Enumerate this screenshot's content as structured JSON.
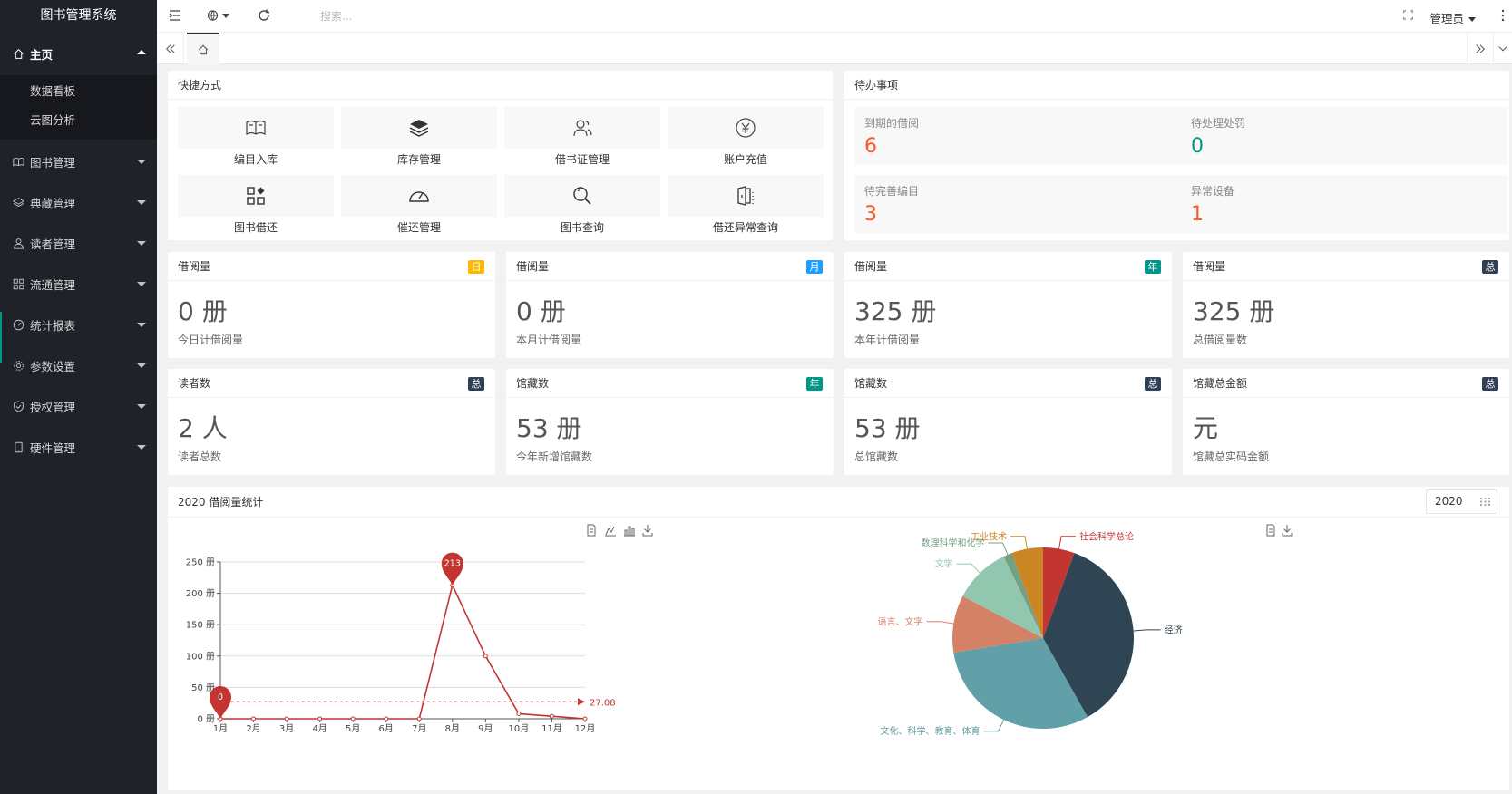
{
  "app": {
    "title": "图书管理系统"
  },
  "sidebar": {
    "items": [
      {
        "label": "主页",
        "icon": "home-icon",
        "open": true,
        "children": [
          "数据看板",
          "云图分析"
        ]
      },
      {
        "label": "图书管理",
        "icon": "book-icon"
      },
      {
        "label": "典藏管理",
        "icon": "layers-icon"
      },
      {
        "label": "读者管理",
        "icon": "user-icon"
      },
      {
        "label": "流通管理",
        "icon": "apps-icon"
      },
      {
        "label": "统计报表",
        "icon": "gauge-icon"
      },
      {
        "label": "参数设置",
        "icon": "gear-icon"
      },
      {
        "label": "授权管理",
        "icon": "shield-icon"
      },
      {
        "label": "硬件管理",
        "icon": "device-icon"
      }
    ]
  },
  "header": {
    "search_placeholder": "搜索...",
    "user": "管理员"
  },
  "shortcuts": {
    "title": "快捷方式",
    "items": [
      {
        "label": "编目入库",
        "icon": "open-book-icon"
      },
      {
        "label": "库存管理",
        "icon": "stack-icon"
      },
      {
        "label": "借书证管理",
        "icon": "users-icon"
      },
      {
        "label": "账户充值",
        "icon": "yen-icon"
      },
      {
        "label": "图书借还",
        "icon": "widgets-icon"
      },
      {
        "label": "催还管理",
        "icon": "speedometer-icon"
      },
      {
        "label": "图书查询",
        "icon": "magnifier-icon"
      },
      {
        "label": "借还异常查询",
        "icon": "book-alert-icon"
      }
    ]
  },
  "todos": {
    "title": "待办事项",
    "items": [
      {
        "label": "到期的借阅",
        "value": "6",
        "color": "#ff5722"
      },
      {
        "label": "待处理处罚",
        "value": "0",
        "color": "#009688"
      },
      {
        "label": "待完善编目",
        "value": "3",
        "color": "#ff5722"
      },
      {
        "label": "异常设备",
        "value": "1",
        "color": "#ff5722"
      }
    ]
  },
  "stats": [
    {
      "title": "借阅量",
      "badge": "日",
      "badge_color": "#ffb800",
      "value": "0 册",
      "sub": "今日计借阅量"
    },
    {
      "title": "借阅量",
      "badge": "月",
      "badge_color": "#1e9fff",
      "value": "0 册",
      "sub": "本月计借阅量"
    },
    {
      "title": "借阅量",
      "badge": "年",
      "badge_color": "#009688",
      "value": "325 册",
      "sub": "本年计借阅量"
    },
    {
      "title": "借阅量",
      "badge": "总",
      "badge_color": "#2f4056",
      "value": "325 册",
      "sub": "总借阅量数"
    },
    {
      "title": "读者数",
      "badge": "总",
      "badge_color": "#2f4056",
      "value": "2 人",
      "sub": "读者总数"
    },
    {
      "title": "馆藏数",
      "badge": "年",
      "badge_color": "#009688",
      "value": "53 册",
      "sub": "今年新增馆藏数"
    },
    {
      "title": "馆藏数",
      "badge": "总",
      "badge_color": "#2f4056",
      "value": "53 册",
      "sub": "总馆藏数"
    },
    {
      "title": "馆藏总金额",
      "badge": "总",
      "badge_color": "#2f4056",
      "value": "元",
      "sub": "馆藏总实码金额"
    }
  ],
  "chart_panel": {
    "title": "2020 借阅量统计",
    "year": "2020"
  },
  "chart_data": [
    {
      "type": "line",
      "x": [
        "1月",
        "2月",
        "3月",
        "4月",
        "5月",
        "6月",
        "7月",
        "8月",
        "9月",
        "10月",
        "11月",
        "12月"
      ],
      "series": [
        {
          "values": [
            0,
            0,
            0,
            0,
            0,
            0,
            0,
            213,
            100,
            8,
            4,
            0
          ],
          "color": "#c23531"
        }
      ],
      "ylim": [
        0,
        250
      ],
      "yticks": [
        0,
        50,
        100,
        150,
        200,
        250
      ],
      "ytick_unit": "册",
      "markpoints": [
        {
          "label": "213",
          "x": "8月",
          "value": 213
        },
        {
          "label": "0",
          "x": "1月",
          "value": 0
        }
      ],
      "markline": {
        "label": "27.08",
        "value": 27.08
      },
      "grid": true
    },
    {
      "type": "pie",
      "slices": [
        {
          "label": "社会科学总论",
          "value": 5.5,
          "color": "#c23531"
        },
        {
          "label": "经济",
          "value": 35.5,
          "color": "#2f4554"
        },
        {
          "label": "文化、科学、教育、体育",
          "value": 30,
          "color": "#61a0a8"
        },
        {
          "label": "语言、文字",
          "value": 10,
          "color": "#d48265"
        },
        {
          "label": "文学",
          "value": 10,
          "color": "#91c7ae"
        },
        {
          "label": "数理科学和化学",
          "value": 1.5,
          "color": "#749f83"
        },
        {
          "label": "工业技术",
          "value": 5.5,
          "color": "#ca8622"
        }
      ]
    }
  ]
}
